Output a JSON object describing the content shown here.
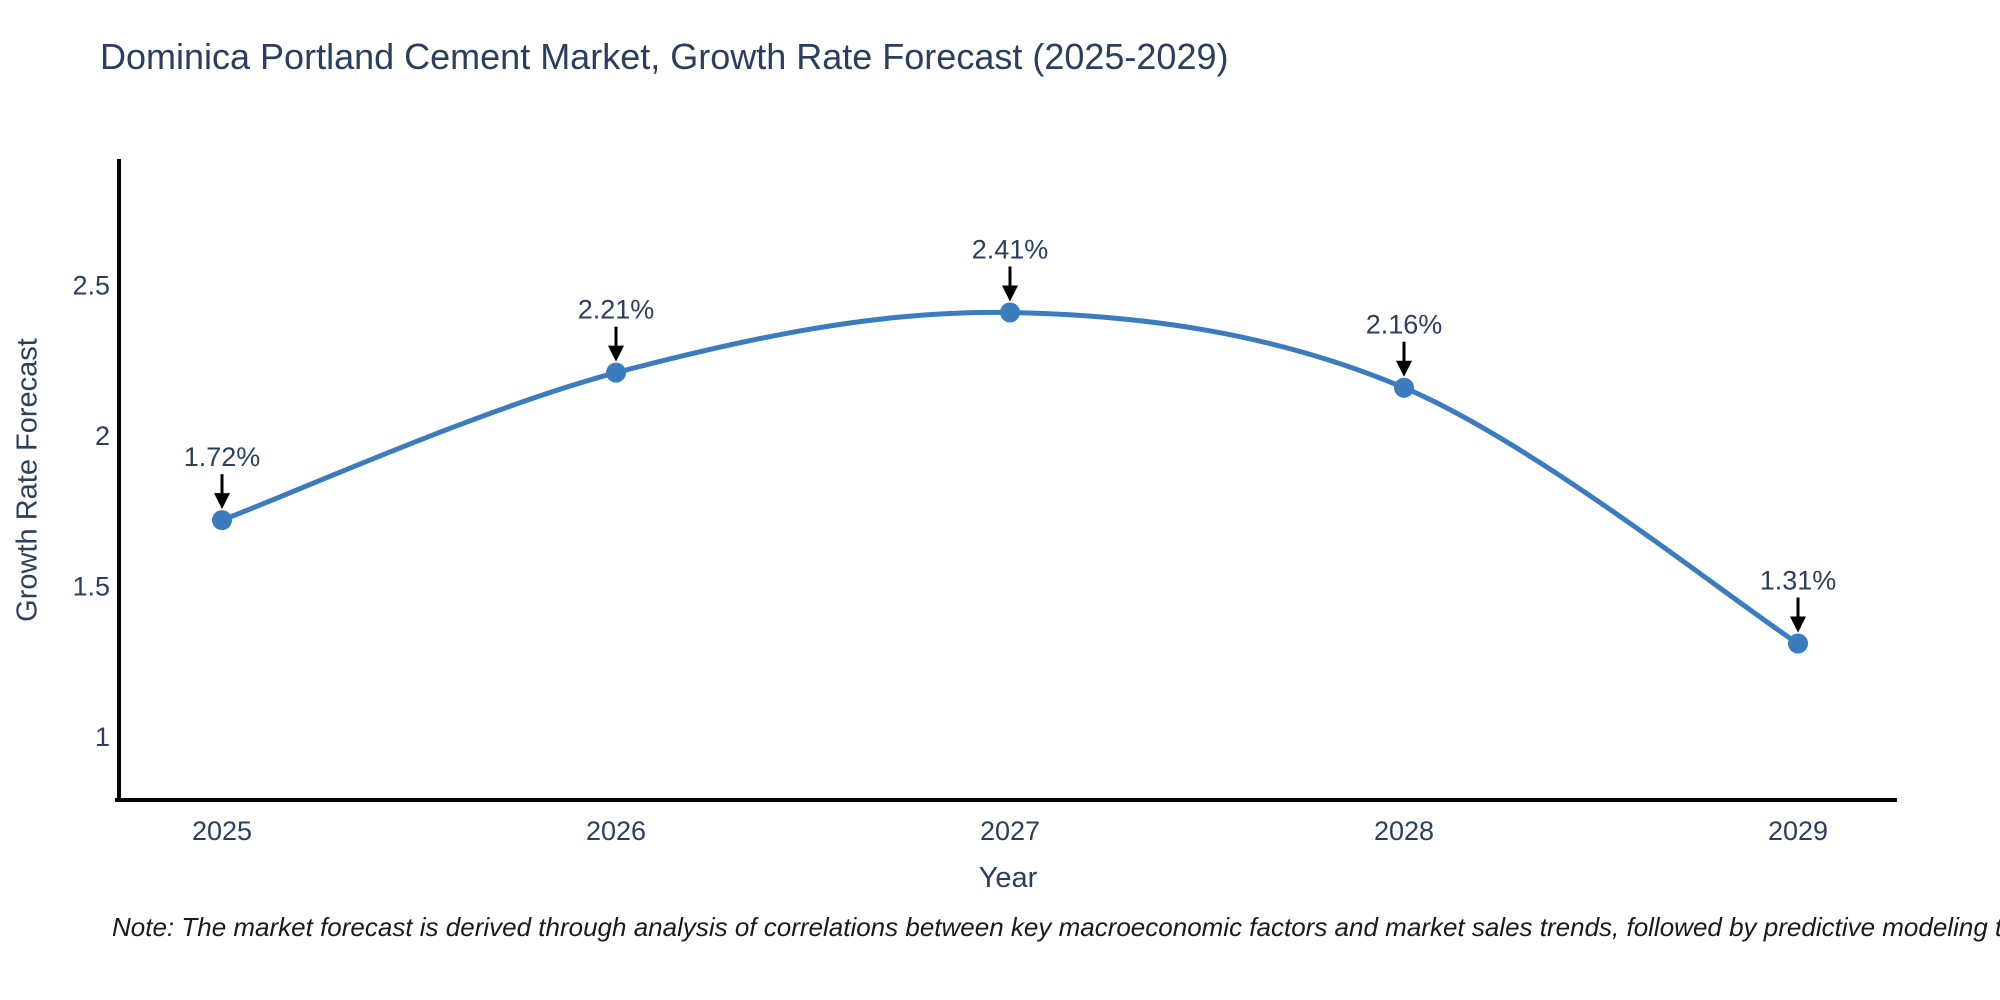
{
  "title": "Dominica Portland Cement Market, Growth Rate Forecast (2025-2029)",
  "note": "Note: The market forecast is derived through analysis of correlations between key macroeconomic factors and market sales trends, followed by predictive modeling to project future sales",
  "chart_data": {
    "type": "line",
    "line_shape": "spline",
    "x": [
      2025,
      2026,
      2027,
      2028,
      2029
    ],
    "values": [
      1.72,
      2.21,
      2.41,
      2.16,
      1.31
    ],
    "point_labels": [
      "1.72%",
      "2.21%",
      "2.41%",
      "2.16%",
      "1.31%"
    ],
    "title": "Dominica Portland Cement Market, Growth Rate Forecast (2025-2029)",
    "xlabel": "Year",
    "ylabel": "Growth Rate Forecast",
    "yticks": [
      1,
      1.5,
      2,
      2.5
    ],
    "ytick_labels": [
      "1",
      "1.5",
      "2",
      "2.5"
    ],
    "ylim": [
      0.79,
      2.92
    ],
    "grid": false,
    "legend": "none",
    "colors": {
      "line": "#3a7cbe",
      "marker": "#3a7cbe",
      "axis": "#000000",
      "text": "#2a3f5f",
      "annotation_arrow": "#000000",
      "note_text": "#1a1a1a",
      "background": "#ffffff"
    }
  }
}
